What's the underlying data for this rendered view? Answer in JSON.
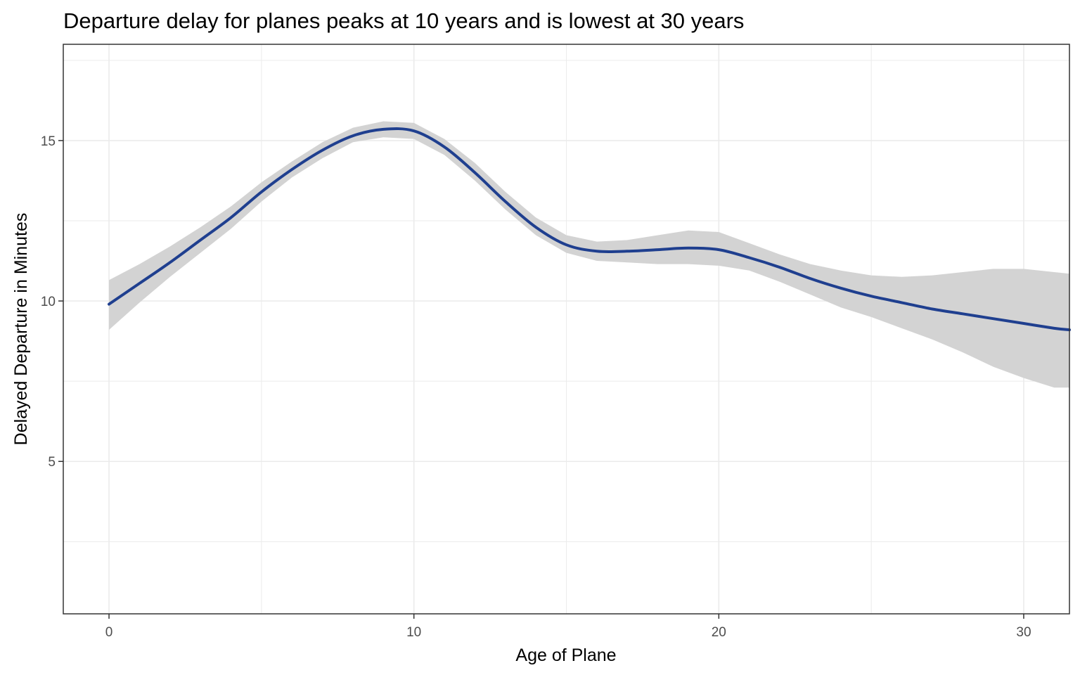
{
  "chart_data": {
    "type": "line",
    "title": "Departure delay for planes peaks at 10 years and is lowest at 30 years",
    "xlabel": "Age of Plane",
    "ylabel": "Delayed Departure in Minutes",
    "xlim": [
      -1.5,
      31.5
    ],
    "ylim": [
      0.25,
      18.0
    ],
    "x_ticks": [
      0,
      10,
      20,
      30
    ],
    "y_ticks": [
      5,
      10,
      15
    ],
    "grid": true,
    "legend": "none",
    "colors": {
      "line": "#1f3f8f",
      "ribbon": "#d3d3d3",
      "grid": "#ebebeb",
      "panel_border": "#333333",
      "tick_text": "#4d4d4d"
    },
    "series": [
      {
        "x": [
          0,
          1,
          2,
          3,
          4,
          5,
          6,
          7,
          8,
          9,
          10,
          11,
          12,
          13,
          14,
          15,
          16,
          17,
          18,
          19,
          20,
          21,
          22,
          23,
          24,
          25,
          26,
          27,
          28,
          29,
          30,
          31,
          31.5
        ],
        "y": [
          9.9,
          10.55,
          11.2,
          11.9,
          12.6,
          13.4,
          14.1,
          14.7,
          15.15,
          15.35,
          15.3,
          14.8,
          14.0,
          13.1,
          12.3,
          11.75,
          11.55,
          11.55,
          11.6,
          11.65,
          11.6,
          11.35,
          11.05,
          10.7,
          10.4,
          10.15,
          9.95,
          9.75,
          9.6,
          9.45,
          9.3,
          9.15,
          9.1
        ],
        "lower": [
          9.1,
          9.95,
          10.75,
          11.5,
          12.25,
          13.1,
          13.85,
          14.45,
          14.95,
          15.1,
          15.05,
          14.55,
          13.75,
          12.85,
          12.05,
          11.5,
          11.25,
          11.2,
          11.15,
          11.15,
          11.1,
          10.95,
          10.6,
          10.2,
          9.8,
          9.5,
          9.15,
          8.8,
          8.4,
          7.95,
          7.6,
          7.3,
          7.3
        ],
        "upper": [
          10.65,
          11.15,
          11.7,
          12.3,
          12.95,
          13.7,
          14.35,
          14.95,
          15.4,
          15.6,
          15.55,
          15.05,
          14.3,
          13.4,
          12.6,
          12.05,
          11.85,
          11.9,
          12.05,
          12.2,
          12.15,
          11.8,
          11.45,
          11.15,
          10.95,
          10.8,
          10.75,
          10.8,
          10.9,
          11.0,
          11.0,
          10.9,
          10.85
        ]
      }
    ]
  }
}
